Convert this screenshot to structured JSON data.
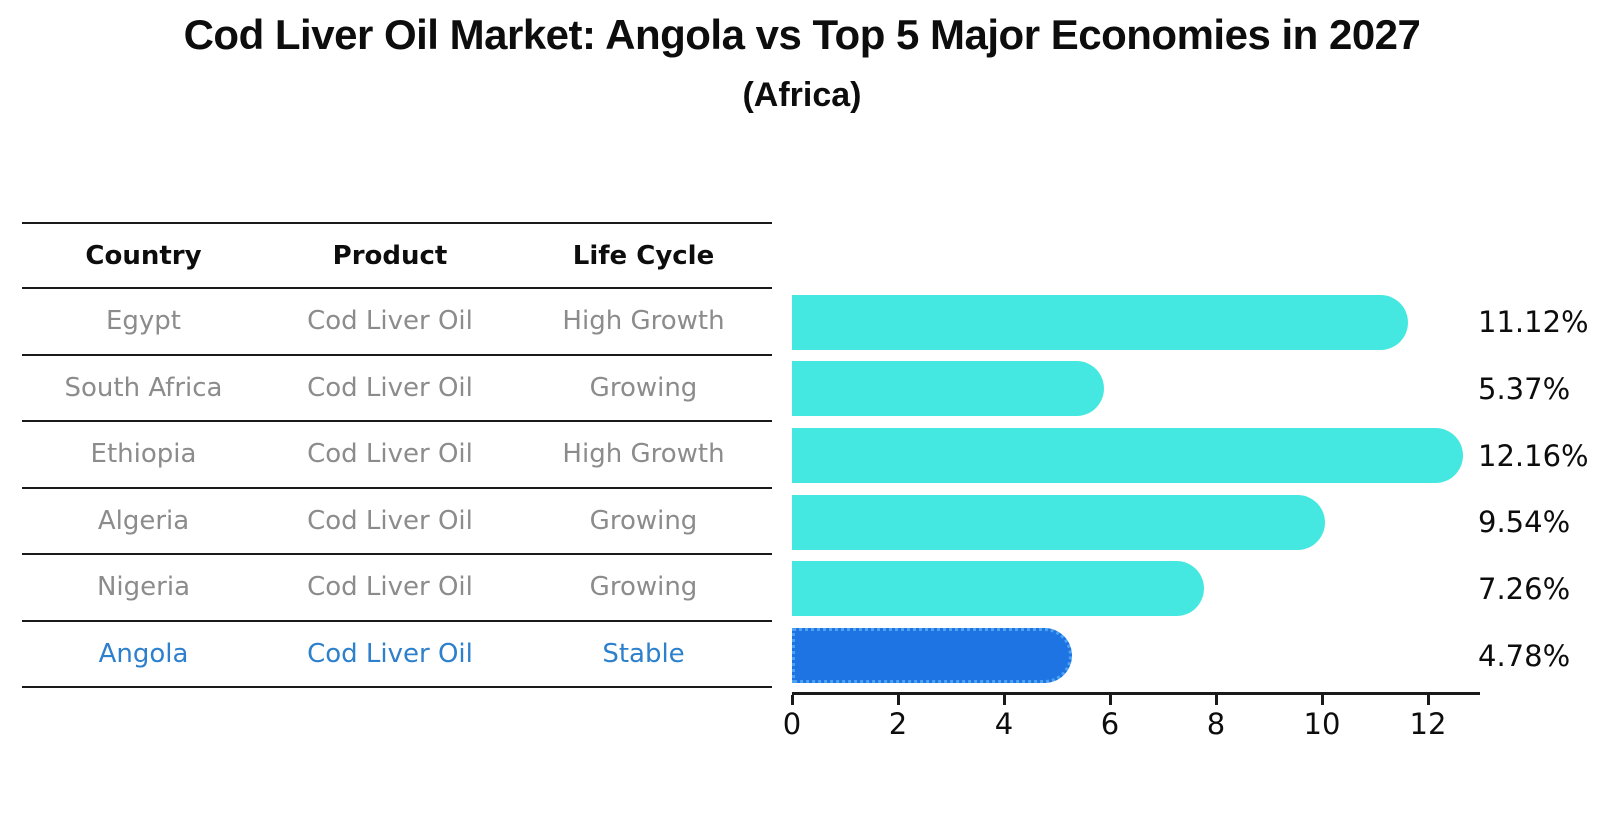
{
  "title": "Cod Liver Oil Market: Angola vs Top 5 Major Economies in 2027",
  "subtitle": "(Africa)",
  "table": {
    "columns": [
      "Country",
      "Product",
      "Life Cycle"
    ],
    "rows": [
      {
        "country": "Egypt",
        "product": "Cod Liver Oil",
        "life_cycle": "High Growth"
      },
      {
        "country": "South Africa",
        "product": "Cod Liver Oil",
        "life_cycle": "Growing"
      },
      {
        "country": "Ethiopia",
        "product": "Cod Liver Oil",
        "life_cycle": "High Growth"
      },
      {
        "country": "Algeria",
        "product": "Cod Liver Oil",
        "life_cycle": "Growing"
      },
      {
        "country": "Nigeria",
        "product": "Cod Liver Oil",
        "life_cycle": "Growing"
      },
      {
        "country": "Angola",
        "product": "Cod Liver Oil",
        "life_cycle": "Stable"
      }
    ],
    "highlight_row": "Angola"
  },
  "chart_data": {
    "type": "bar",
    "orientation": "horizontal",
    "title": "Cod Liver Oil Market: Angola vs Top 5 Major Economies in 2027",
    "subtitle": "(Africa)",
    "categories": [
      "Egypt",
      "South Africa",
      "Ethiopia",
      "Algeria",
      "Nigeria",
      "Angola"
    ],
    "values": [
      11.12,
      5.37,
      12.16,
      9.54,
      7.26,
      4.78
    ],
    "value_labels": [
      "11.12%",
      "5.37%",
      "12.16%",
      "9.54%",
      "7.26%",
      "4.78%"
    ],
    "unit": "%",
    "xticks": [
      0,
      2,
      4,
      6,
      8,
      10,
      12
    ],
    "xlim": [
      0,
      13
    ],
    "highlight_index": 5,
    "grid": false,
    "legend": false,
    "colors": {
      "bar": "#45e8e0",
      "highlight_bar": "#1e74e3",
      "highlight_border": "#4da3f2",
      "highlight_text": "#2d80cc",
      "row_text": "#8c8c8c",
      "text": "#0d0d0d",
      "axis": "#1a1a1a"
    }
  }
}
